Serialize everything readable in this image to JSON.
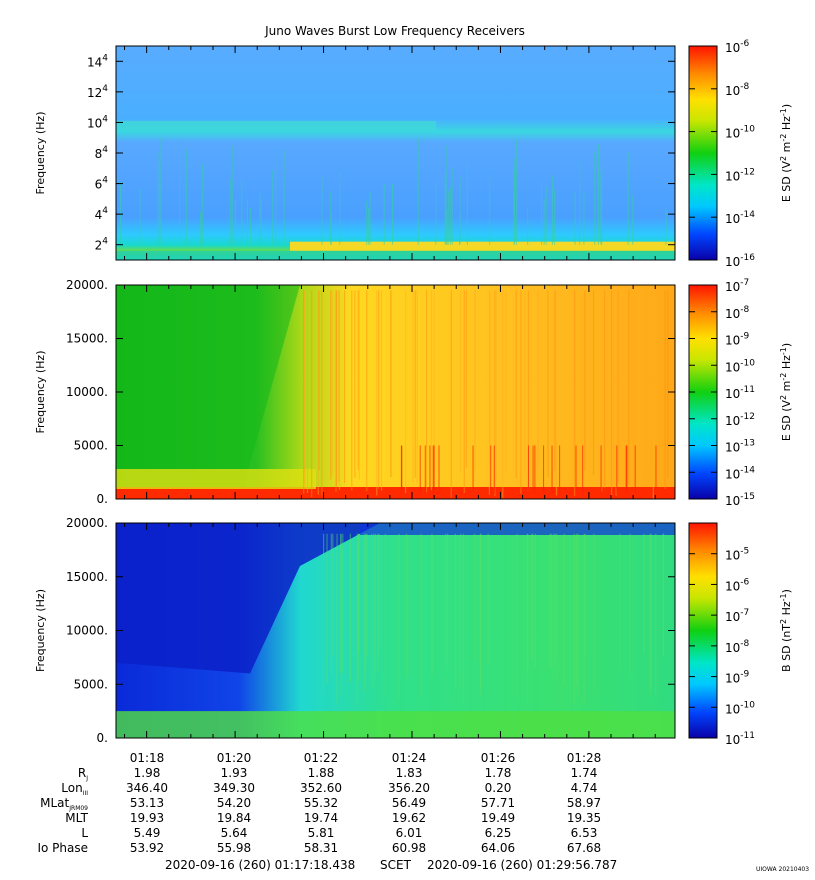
{
  "title": "Juno Waves Burst Low Frequency Receivers",
  "footer": {
    "start": "2020-09-16 (260) 01:17:18.438",
    "scet": "SCET",
    "end": "2020-09-16 (260) 01:29:56.787",
    "credit": "UIOWA 20210403"
  },
  "time_ticks": [
    "01:18",
    "01:20",
    "01:22",
    "01:24",
    "01:26",
    "01:28"
  ],
  "ephemeris": [
    {
      "label": "R",
      "sub": "J",
      "values": [
        "1.98",
        "1.93",
        "1.88",
        "1.83",
        "1.78",
        "1.74"
      ]
    },
    {
      "label": "Lon",
      "sub": "III",
      "values": [
        "346.40",
        "349.30",
        "352.60",
        "356.20",
        "0.20",
        "4.74"
      ]
    },
    {
      "label": "MLat",
      "sub": "JRM09",
      "values": [
        "53.13",
        "54.20",
        "55.32",
        "56.49",
        "57.71",
        "58.97"
      ]
    },
    {
      "label": "MLT",
      "sub": "",
      "values": [
        "19.93",
        "19.84",
        "19.74",
        "19.62",
        "19.49",
        "19.35"
      ]
    },
    {
      "label": "L",
      "sub": "",
      "values": [
        "5.49",
        "5.64",
        "5.81",
        "6.01",
        "6.25",
        "6.53"
      ]
    },
    {
      "label": "Io Phase",
      "sub": "",
      "values": [
        "53.92",
        "55.98",
        "58.31",
        "60.98",
        "64.06",
        "67.68"
      ]
    }
  ],
  "chart_data": [
    {
      "type": "heatmap",
      "ylabel": "Frequency (Hz)",
      "yticks": [
        {
          "v": 20000,
          "m": "2",
          "e": "4"
        },
        {
          "v": 40000,
          "m": "4",
          "e": "4"
        },
        {
          "v": 60000,
          "m": "6",
          "e": "4"
        },
        {
          "v": 80000,
          "m": "8",
          "e": "4"
        },
        {
          "v": 100000,
          "m": "10",
          "e": "4"
        },
        {
          "v": 120000,
          "m": "12",
          "e": "4"
        },
        {
          "v": 140000,
          "m": "14",
          "e": "4"
        }
      ],
      "ylim": [
        10000,
        150000
      ],
      "colorbar": {
        "label": "E SD (V",
        "log_min": -16,
        "log_max": -6,
        "ticks": [
          {
            "m": "10",
            "e": "-6"
          },
          {
            "m": "10",
            "e": "-8"
          },
          {
            "m": "10",
            "e": "-10"
          },
          {
            "m": "10",
            "e": "-12"
          },
          {
            "m": "10",
            "e": "-14"
          },
          {
            "m": "10",
            "e": "-16"
          }
        ],
        "tick_exps": [
          -6,
          -8,
          -10,
          -12,
          -14,
          -16
        ]
      }
    },
    {
      "type": "heatmap",
      "ylabel": "Frequency (Hz)",
      "yticks": [
        {
          "v": 0,
          "t": "0."
        },
        {
          "v": 5000,
          "t": "5000."
        },
        {
          "v": 10000,
          "t": "10000."
        },
        {
          "v": 15000,
          "t": "15000."
        },
        {
          "v": 20000,
          "t": "20000."
        }
      ],
      "ylim": [
        0,
        20000
      ],
      "colorbar": {
        "label": "E SD (V",
        "log_min": -15,
        "log_max": -7,
        "ticks": [
          {
            "m": "10",
            "e": "-7"
          },
          {
            "m": "10",
            "e": "-8"
          },
          {
            "m": "10",
            "e": "-9"
          },
          {
            "m": "10",
            "e": "-10"
          },
          {
            "m": "10",
            "e": "-11"
          },
          {
            "m": "10",
            "e": "-12"
          },
          {
            "m": "10",
            "e": "-13"
          },
          {
            "m": "10",
            "e": "-14"
          },
          {
            "m": "10",
            "e": "-15"
          }
        ],
        "tick_exps": [
          -7,
          -8,
          -9,
          -10,
          -11,
          -12,
          -13,
          -14,
          -15
        ]
      }
    },
    {
      "type": "heatmap",
      "ylabel": "Frequency (Hz)",
      "yticks": [
        {
          "v": 0,
          "t": "0."
        },
        {
          "v": 5000,
          "t": "5000."
        },
        {
          "v": 10000,
          "t": "10000."
        },
        {
          "v": 15000,
          "t": "15000."
        },
        {
          "v": 20000,
          "t": "20000."
        }
      ],
      "ylim": [
        0,
        20000
      ],
      "colorbar": {
        "label": "B SD (nT",
        "log_min": -11,
        "log_max": -4,
        "ticks": [
          {
            "m": "10",
            "e": "-5"
          },
          {
            "m": "10",
            "e": "-6"
          },
          {
            "m": "10",
            "e": "-7"
          },
          {
            "m": "10",
            "e": "-8"
          },
          {
            "m": "10",
            "e": "-9"
          },
          {
            "m": "10",
            "e": "-10"
          },
          {
            "m": "10",
            "e": "-11"
          }
        ],
        "tick_exps": [
          -5,
          -6,
          -7,
          -8,
          -9,
          -10,
          -11
        ]
      }
    }
  ]
}
